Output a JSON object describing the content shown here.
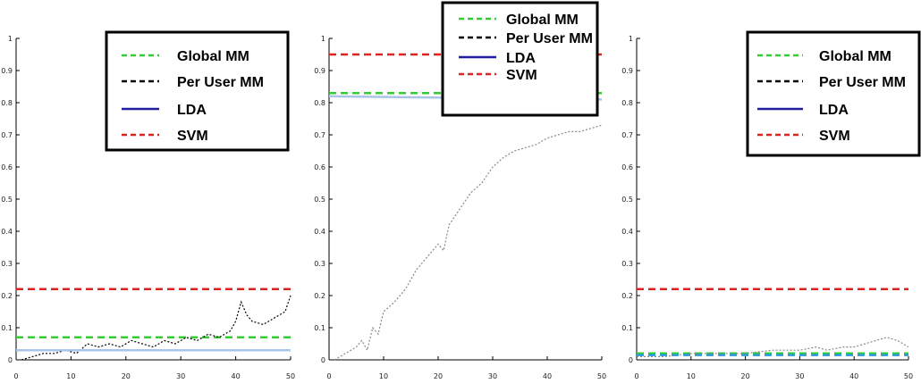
{
  "chart_data": [
    {
      "type": "line",
      "xlim": [
        0,
        50
      ],
      "ylim": [
        0,
        1
      ],
      "xticks": [
        0,
        10,
        20,
        30,
        40,
        50
      ],
      "yticks": [
        0,
        0.1,
        0.2,
        0.3,
        0.4,
        0.5,
        0.6,
        0.7,
        0.8,
        0.9,
        1
      ],
      "grid": false,
      "legend": {
        "placement": "top-right",
        "entries": [
          {
            "label": "Global MM",
            "color": "#33cc33",
            "style": "dashed"
          },
          {
            "label": "Per User MM",
            "color": "#000000",
            "style": "dashed"
          },
          {
            "label": "LDA",
            "color": "#1f1f9e",
            "style": "solid"
          },
          {
            "label": "SVM",
            "color": "#dd2222",
            "style": "dashed"
          }
        ]
      },
      "series": [
        {
          "name": "Global MM",
          "color": "#33cc33",
          "style": "dashed",
          "x": [
            0,
            50
          ],
          "y": [
            0.07,
            0.07
          ]
        },
        {
          "name": "Per User MM",
          "color": "#000000",
          "style": "dotted",
          "x": [
            1,
            3,
            5,
            7,
            9,
            11,
            13,
            15,
            17,
            19,
            21,
            23,
            25,
            27,
            29,
            31,
            33,
            35,
            37,
            39,
            40,
            41,
            42,
            43,
            45,
            47,
            49,
            50
          ],
          "y": [
            0,
            0.01,
            0.02,
            0.02,
            0.03,
            0.02,
            0.05,
            0.04,
            0.05,
            0.04,
            0.06,
            0.05,
            0.04,
            0.06,
            0.05,
            0.07,
            0.06,
            0.08,
            0.07,
            0.09,
            0.12,
            0.18,
            0.14,
            0.12,
            0.11,
            0.13,
            0.15,
            0.2
          ]
        },
        {
          "name": "LDA",
          "color": "#aac4e8",
          "style": "solid",
          "x": [
            0,
            50
          ],
          "y": [
            0.03,
            0.03
          ]
        },
        {
          "name": "SVM",
          "color": "#dd2222",
          "style": "dashed",
          "x": [
            0,
            50
          ],
          "y": [
            0.22,
            0.22
          ]
        }
      ]
    },
    {
      "type": "line",
      "xlim": [
        0,
        50
      ],
      "ylim": [
        0,
        1
      ],
      "xticks": [
        0,
        10,
        20,
        30,
        40,
        50
      ],
      "yticks": [
        0,
        0.1,
        0.2,
        0.3,
        0.4,
        0.5,
        0.6,
        0.7,
        0.8,
        0.9,
        1
      ],
      "grid": false,
      "legend": {
        "placement": "top-right",
        "entries": [
          {
            "label": "Global MM",
            "color": "#33cc33",
            "style": "dashed"
          },
          {
            "label": "Per User MM",
            "color": "#000000",
            "style": "dashed"
          },
          {
            "label": "LDA",
            "color": "#1f1f9e",
            "style": "solid"
          },
          {
            "label": "SVM",
            "color": "#dd2222",
            "style": "dashed"
          }
        ]
      },
      "series": [
        {
          "name": "Global MM",
          "color": "#33cc33",
          "style": "dashed",
          "x": [
            0,
            50
          ],
          "y": [
            0.83,
            0.83
          ]
        },
        {
          "name": "Per User MM",
          "color": "#888888",
          "style": "dotted",
          "x": [
            1,
            3,
            5,
            6,
            7,
            8,
            9,
            10,
            12,
            14,
            16,
            18,
            20,
            21,
            22,
            24,
            26,
            28,
            30,
            32,
            34,
            36,
            38,
            40,
            42,
            44,
            46,
            48,
            50
          ],
          "y": [
            0,
            0.02,
            0.04,
            0.06,
            0.03,
            0.1,
            0.08,
            0.15,
            0.18,
            0.22,
            0.28,
            0.32,
            0.36,
            0.34,
            0.42,
            0.47,
            0.52,
            0.55,
            0.6,
            0.63,
            0.65,
            0.66,
            0.67,
            0.69,
            0.7,
            0.71,
            0.71,
            0.72,
            0.73
          ]
        },
        {
          "name": "LDA",
          "color": "#aac4e8",
          "style": "solid",
          "x": [
            0,
            50
          ],
          "y": [
            0.82,
            0.81
          ]
        },
        {
          "name": "SVM",
          "color": "#dd2222",
          "style": "dashed",
          "x": [
            0,
            50
          ],
          "y": [
            0.95,
            0.95
          ]
        }
      ]
    },
    {
      "type": "line",
      "xlim": [
        0,
        50
      ],
      "ylim": [
        0,
        1
      ],
      "xticks": [
        0,
        10,
        20,
        30,
        40,
        50
      ],
      "yticks": [
        0,
        0.1,
        0.2,
        0.3,
        0.4,
        0.5,
        0.6,
        0.7,
        0.8,
        0.9,
        1
      ],
      "grid": false,
      "legend": {
        "placement": "top-right",
        "entries": [
          {
            "label": "Global MM",
            "color": "#33cc33",
            "style": "dashed"
          },
          {
            "label": "Per User MM",
            "color": "#000000",
            "style": "dashed"
          },
          {
            "label": "LDA",
            "color": "#1f1f9e",
            "style": "solid"
          },
          {
            "label": "SVM",
            "color": "#dd2222",
            "style": "dashed"
          }
        ]
      },
      "series": [
        {
          "name": "Global MM",
          "color": "#33cc33",
          "style": "dashed",
          "x": [
            0,
            50
          ],
          "y": [
            0.02,
            0.02
          ]
        },
        {
          "name": "Per User MM",
          "color": "#888888",
          "style": "dotted",
          "x": [
            0,
            5,
            10,
            15,
            20,
            25,
            30,
            33,
            35,
            38,
            40,
            42,
            44,
            46,
            48,
            50
          ],
          "y": [
            0.01,
            0.01,
            0.02,
            0.02,
            0.02,
            0.03,
            0.03,
            0.04,
            0.03,
            0.04,
            0.04,
            0.05,
            0.06,
            0.07,
            0.06,
            0.04
          ]
        },
        {
          "name": "LDA",
          "color": "#2a9bd8",
          "style": "dashed",
          "x": [
            0,
            50
          ],
          "y": [
            0.015,
            0.015
          ]
        },
        {
          "name": "SVM",
          "color": "#dd2222",
          "style": "dashed",
          "x": [
            0,
            50
          ],
          "y": [
            0.22,
            0.22
          ]
        }
      ]
    }
  ]
}
